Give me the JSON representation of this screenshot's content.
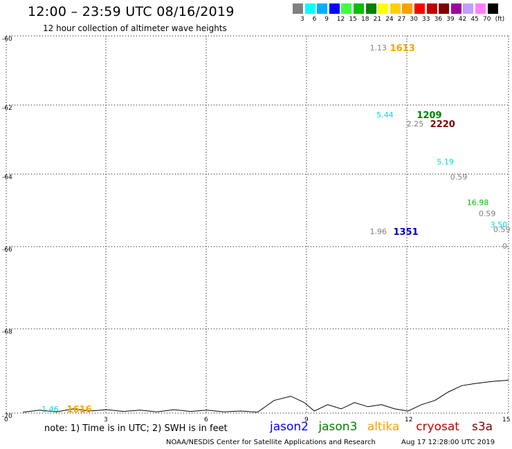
{
  "title": "12:00 – 23:59 UTC 08/16/2019",
  "subtitle": "12 hour collection of altimeter wave heights",
  "legend": {
    "colors": [
      "#808080",
      "#00ffff",
      "#00b0ff",
      "#0000ff",
      "#40ff40",
      "#00c000",
      "#008000",
      "#ffff00",
      "#ffd000",
      "#ffa000",
      "#ff0000",
      "#c00000",
      "#800000",
      "#a000a0",
      "#c0a0ff",
      "#ff80ff",
      "#000000"
    ],
    "labels": [
      "3",
      "6",
      "9",
      "12",
      "15",
      "18",
      "21",
      "24",
      "27",
      "30",
      "33",
      "36",
      "39",
      "42",
      "45",
      "70",
      "(ft)"
    ]
  },
  "map": {
    "lat_ticks": [
      "-60",
      "-62",
      "-64",
      "-66",
      "-68",
      "-70"
    ],
    "lon_ticks": [
      "0",
      "3",
      "6",
      "9",
      "12",
      "15"
    ],
    "extent": {
      "lon": [
        0,
        15
      ],
      "lat": [
        -70,
        -60
      ]
    },
    "grid": "dotted",
    "coastline": [
      [
        0.5,
        -69.98
      ],
      [
        1.0,
        -69.93
      ],
      [
        1.5,
        -69.97
      ],
      [
        2.0,
        -69.9
      ],
      [
        2.5,
        -69.95
      ],
      [
        3.0,
        -69.92
      ],
      [
        3.5,
        -69.96
      ],
      [
        4.0,
        -69.93
      ],
      [
        4.5,
        -69.97
      ],
      [
        5.0,
        -69.92
      ],
      [
        5.5,
        -69.96
      ],
      [
        6.0,
        -69.93
      ],
      [
        6.5,
        -69.97
      ],
      [
        7.0,
        -69.95
      ],
      [
        7.5,
        -69.98
      ],
      [
        8.0,
        -69.7
      ],
      [
        8.5,
        -69.6
      ],
      [
        8.9,
        -69.75
      ],
      [
        9.2,
        -69.95
      ],
      [
        9.6,
        -69.8
      ],
      [
        10.0,
        -69.9
      ],
      [
        10.4,
        -69.75
      ],
      [
        10.8,
        -69.85
      ],
      [
        11.2,
        -69.8
      ],
      [
        11.6,
        -69.9
      ],
      [
        12.0,
        -69.95
      ],
      [
        12.4,
        -69.8
      ],
      [
        12.8,
        -69.7
      ],
      [
        13.2,
        -69.5
      ],
      [
        13.6,
        -69.35
      ],
      [
        14.0,
        -69.3
      ],
      [
        14.5,
        -69.25
      ],
      [
        15.0,
        -69.22
      ]
    ]
  },
  "observations": [
    {
      "lon": 10.9,
      "lat": -60.35,
      "text": "1.13",
      "color": "#808080",
      "type": "swh"
    },
    {
      "lon": 11.5,
      "lat": -60.35,
      "text": "1613",
      "color": "#ffa000",
      "type": "time"
    },
    {
      "lon": 11.1,
      "lat": -62.3,
      "text": "5.44",
      "color": "#00e0e0",
      "type": "swh"
    },
    {
      "lon": 12.3,
      "lat": -62.3,
      "text": "1209",
      "color": "#008000",
      "type": "time"
    },
    {
      "lon": 12.0,
      "lat": -62.55,
      "text": "2.25",
      "color": "#808080",
      "type": "swh"
    },
    {
      "lon": 12.7,
      "lat": -62.55,
      "text": "2220",
      "color": "#800000",
      "type": "time"
    },
    {
      "lon": 12.9,
      "lat": -63.65,
      "text": "5.19",
      "color": "#00e0e0",
      "type": "swh"
    },
    {
      "lon": 13.3,
      "lat": -64.1,
      "text": "0.59",
      "color": "#808080",
      "type": "swh"
    },
    {
      "lon": 13.8,
      "lat": -64.8,
      "text": "16.98",
      "color": "#00c000",
      "type": "swh"
    },
    {
      "lon": 14.15,
      "lat": -65.1,
      "text": "0.59",
      "color": "#808080",
      "type": "swh"
    },
    {
      "lon": 14.5,
      "lat": -65.4,
      "text": "3.50",
      "color": "#00e0e0",
      "type": "swh"
    },
    {
      "lon": 14.6,
      "lat": -65.55,
      "text": "0.59",
      "color": "#808080",
      "type": "swh"
    },
    {
      "lon": 15.0,
      "lat": -66.0,
      "text": "0.",
      "color": "#808080",
      "type": "swh"
    },
    {
      "lon": 10.9,
      "lat": -65.6,
      "text": "1.96",
      "color": "#808080",
      "type": "swh"
    },
    {
      "lon": 11.6,
      "lat": -65.6,
      "text": "1351",
      "color": "#0000c0",
      "type": "time"
    },
    {
      "lon": 1.1,
      "lat": -69.92,
      "text": "1.46",
      "color": "#00e0e0",
      "type": "swh"
    },
    {
      "lon": 1.85,
      "lat": -69.92,
      "text": "1616",
      "color": "#ffa000",
      "type": "time"
    }
  ],
  "note": "note:  1) Time is in UTC;  2) SWH is in feet",
  "satellites": [
    {
      "name": "jason2",
      "color": "#0000ff"
    },
    {
      "name": "jason3",
      "color": "#008000"
    },
    {
      "name": "altika",
      "color": "#ffa000"
    },
    {
      "name": "cryosat",
      "color": "#c00000"
    },
    {
      "name": "s3a",
      "color": "#800000"
    }
  ],
  "credit": "NOAA/NESDIS Center for Satellite Applications and Research",
  "datestamp": "Aug 17 12:28:00 UTC 2019"
}
